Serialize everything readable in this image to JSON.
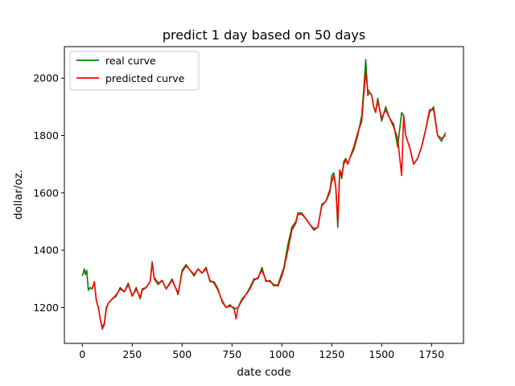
{
  "chart_data": {
    "type": "line",
    "title": "predict 1 day based on 50 days",
    "xlabel": "date code",
    "ylabel": "dollar/oz.",
    "xlim": [
      -90,
      1910
    ],
    "ylim": [
      1075,
      2110
    ],
    "xticks": [
      0,
      250,
      500,
      750,
      1000,
      1250,
      1500,
      1750
    ],
    "yticks": [
      1200,
      1400,
      1600,
      1800,
      2000
    ],
    "grid": false,
    "legend": {
      "placement": "top-left"
    },
    "series": [
      {
        "name": "real curve",
        "color": "#008000",
        "x": [
          0,
          10,
          15,
          22,
          30,
          40,
          50,
          60,
          70,
          80,
          90,
          100,
          110,
          120,
          130,
          150,
          170,
          190,
          210,
          230,
          250,
          270,
          290,
          300,
          320,
          340,
          350,
          360,
          380,
          400,
          420,
          450,
          480,
          500,
          520,
          540,
          560,
          580,
          600,
          620,
          640,
          660,
          680,
          700,
          720,
          740,
          760,
          780,
          800,
          820,
          840,
          860,
          880,
          900,
          920,
          940,
          960,
          980,
          1000,
          1010,
          1030,
          1050,
          1070,
          1080,
          1100,
          1120,
          1140,
          1160,
          1180,
          1200,
          1220,
          1240,
          1250,
          1260,
          1270,
          1280,
          1290,
          1300,
          1310,
          1320,
          1330,
          1340,
          1360,
          1380,
          1400,
          1410,
          1420,
          1430,
          1440,
          1450,
          1460,
          1470,
          1480,
          1500,
          1520,
          1540,
          1560,
          1580,
          1600,
          1610,
          1620,
          1640,
          1660,
          1680,
          1700,
          1720,
          1740,
          1760,
          1780,
          1800,
          1820
        ],
        "y": [
          1310,
          1335,
          1315,
          1330,
          1260,
          1270,
          1265,
          1290,
          1225,
          1200,
          1160,
          1130,
          1145,
          1200,
          1215,
          1230,
          1240,
          1270,
          1255,
          1285,
          1240,
          1270,
          1230,
          1260,
          1270,
          1290,
          1360,
          1300,
          1280,
          1295,
          1265,
          1300,
          1245,
          1330,
          1350,
          1330,
          1310,
          1335,
          1320,
          1340,
          1290,
          1290,
          1265,
          1220,
          1200,
          1210,
          1195,
          1200,
          1230,
          1245,
          1270,
          1300,
          1300,
          1340,
          1290,
          1295,
          1275,
          1280,
          1320,
          1340,
          1420,
          1480,
          1500,
          1530,
          1530,
          1510,
          1490,
          1470,
          1480,
          1560,
          1570,
          1600,
          1660,
          1670,
          1620,
          1480,
          1680,
          1650,
          1710,
          1720,
          1700,
          1720,
          1750,
          1800,
          1870,
          1960,
          2065,
          1940,
          1950,
          1940,
          1900,
          1880,
          1930,
          1850,
          1900,
          1860,
          1840,
          1760,
          1880,
          1870,
          1800,
          1760,
          1700,
          1720,
          1760,
          1820,
          1880,
          1900,
          1800,
          1780,
          1810
        ]
      },
      {
        "name": "predicted curve",
        "color": "#ff0000",
        "x": [
          50,
          60,
          70,
          80,
          90,
          100,
          110,
          120,
          130,
          150,
          170,
          190,
          210,
          230,
          250,
          270,
          290,
          300,
          320,
          340,
          350,
          360,
          380,
          400,
          420,
          450,
          480,
          500,
          520,
          540,
          560,
          580,
          600,
          620,
          640,
          660,
          680,
          700,
          720,
          740,
          760,
          770,
          780,
          800,
          820,
          840,
          860,
          880,
          900,
          920,
          940,
          960,
          980,
          1000,
          1010,
          1030,
          1050,
          1070,
          1080,
          1100,
          1120,
          1140,
          1160,
          1180,
          1200,
          1220,
          1240,
          1250,
          1260,
          1270,
          1280,
          1290,
          1300,
          1310,
          1320,
          1330,
          1340,
          1360,
          1380,
          1400,
          1410,
          1420,
          1430,
          1440,
          1450,
          1460,
          1470,
          1480,
          1500,
          1520,
          1540,
          1560,
          1580,
          1600,
          1610,
          1620,
          1640,
          1660,
          1680,
          1700,
          1720,
          1740,
          1760,
          1780,
          1800,
          1820
        ],
        "y": [
          1265,
          1290,
          1225,
          1200,
          1160,
          1125,
          1140,
          1195,
          1215,
          1230,
          1245,
          1265,
          1255,
          1280,
          1240,
          1265,
          1235,
          1265,
          1270,
          1290,
          1355,
          1305,
          1285,
          1295,
          1265,
          1295,
          1250,
          1325,
          1345,
          1330,
          1315,
          1335,
          1320,
          1335,
          1295,
          1285,
          1260,
          1225,
          1200,
          1205,
          1200,
          1160,
          1200,
          1225,
          1245,
          1265,
          1295,
          1305,
          1330,
          1295,
          1290,
          1280,
          1275,
          1310,
          1335,
          1400,
          1470,
          1495,
          1525,
          1525,
          1510,
          1490,
          1475,
          1480,
          1555,
          1570,
          1610,
          1640,
          1660,
          1620,
          1500,
          1680,
          1660,
          1700,
          1715,
          1700,
          1720,
          1760,
          1810,
          1850,
          1940,
          2020,
          1960,
          1950,
          1940,
          1900,
          1885,
          1920,
          1860,
          1890,
          1860,
          1830,
          1790,
          1660,
          1870,
          1800,
          1760,
          1700,
          1720,
          1760,
          1820,
          1890,
          1890,
          1800,
          1790,
          1800
        ]
      }
    ]
  }
}
